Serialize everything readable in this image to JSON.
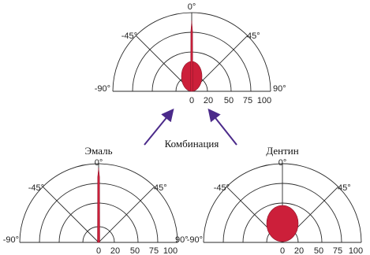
{
  "colors": {
    "grid": "#2a2a2a",
    "lobe_fill": "#cc1f3a",
    "lobe_stroke": "#8a1428",
    "arrow": "#4b2a8a",
    "background": "#ffffff"
  },
  "angle_labels": {
    "zero": "0°",
    "neg45": "-45°",
    "pos45": "45°",
    "neg90": "-90°",
    "pos90": "90°"
  },
  "radial_ticks": [
    "0",
    "20",
    "50",
    "75",
    "100"
  ],
  "diagrams": {
    "combination": {
      "title": "Комбинация",
      "lobe": "combination"
    },
    "enamel": {
      "title": "Эмаль",
      "lobe": "narrow-spike"
    },
    "dentin": {
      "title": "Дентин",
      "lobe": "broad-ellipse"
    }
  }
}
